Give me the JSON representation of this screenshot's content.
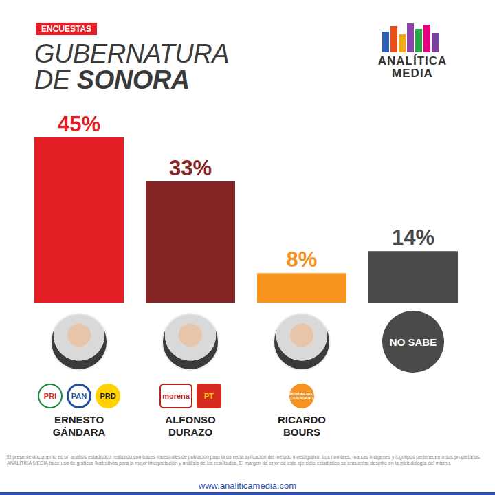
{
  "header": {
    "tag": "ENCUESTAS",
    "title": "GUBERNATURA DE SONORA",
    "brand": "ANALÍTICA MEDIA"
  },
  "chart_data": {
    "type": "bar",
    "categories": [
      "ERNESTO GÁNDARA",
      "ALFONSO DURAZO",
      "RICARDO BOURS",
      "NO SABE"
    ],
    "values": [
      45,
      33,
      8,
      14
    ],
    "value_labels": [
      "45%",
      "33%",
      "8%",
      "14%"
    ],
    "colors": [
      "#e31e24",
      "#862525",
      "#f7931e",
      "#4a4a4a"
    ],
    "ylim": [
      0,
      45
    ],
    "grid": false,
    "data_labels": true,
    "tick_labels": false
  },
  "party_logos": [
    [
      "PRI",
      "PAN",
      "PRD"
    ],
    [
      "morena",
      "PT"
    ],
    [
      "MOVIMIENTO CIUDADANO"
    ],
    []
  ],
  "footer": {
    "disclaimer": "El presente documento es un análisis estadístico realizado con bases muestrales de población para la correcta aplicación del método investigativo. Los nombres, marcas imágenes y logotipos pertenecen a sus propietarios. ANALÍTICA MEDIA hace uso de gráficos ilustrativos para la mejor interpretación y análisis de los resultados. El margen de error de este ejercicio estadístico se encuentra descrito en la metodología del mismo.",
    "url": "www.analiticamedia.com"
  }
}
